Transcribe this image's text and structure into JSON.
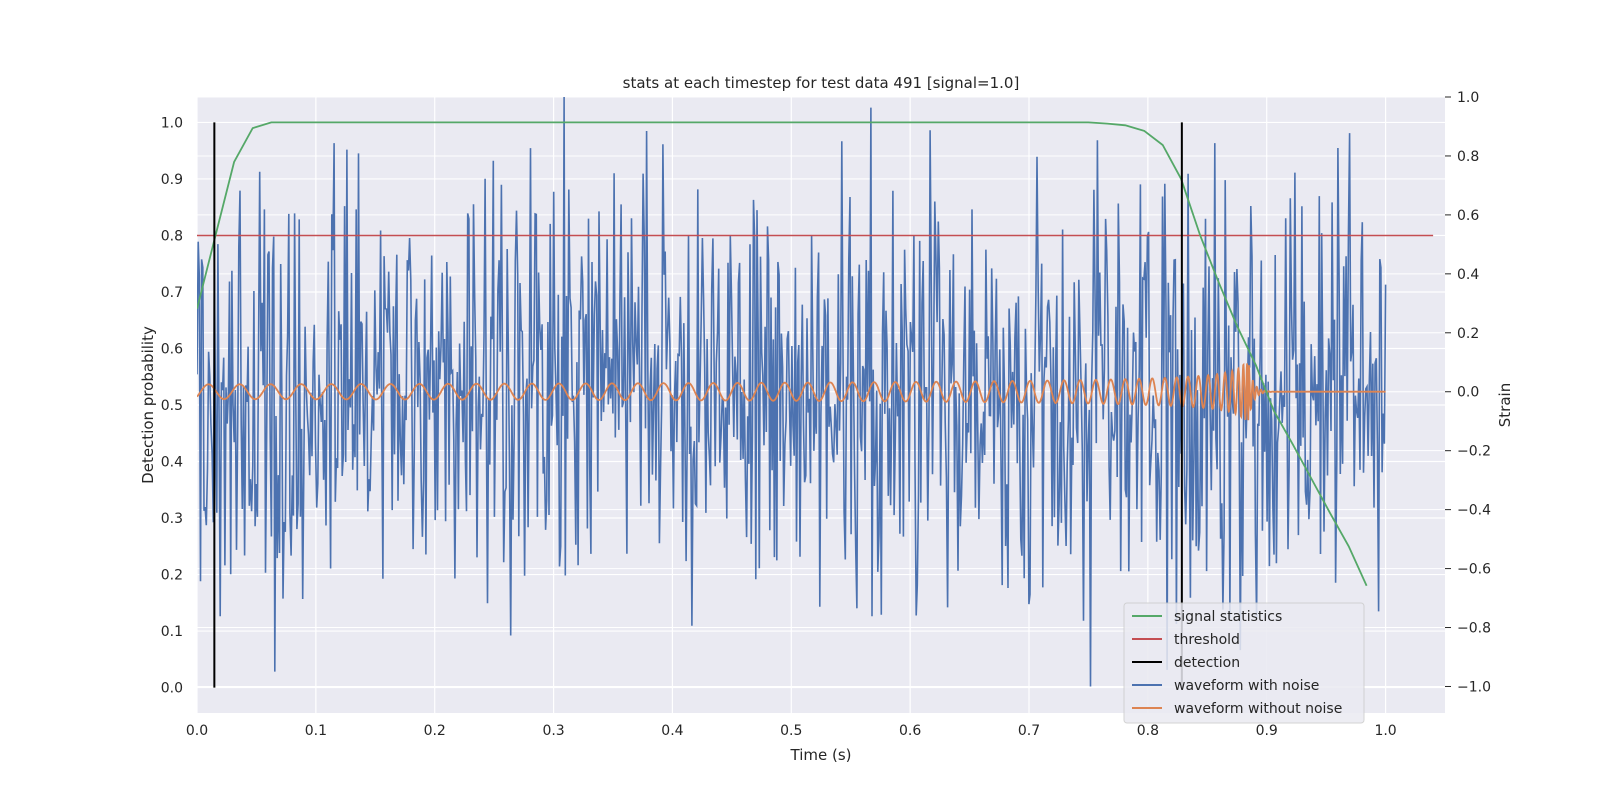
{
  "chart_data": {
    "type": "line",
    "title": "stats at each timestep for test data 491 [signal=1.0]",
    "xlabel": "Time (s)",
    "ylabel": "Detection probability",
    "y2label": "Strain",
    "xlim": [
      0.0,
      1.05
    ],
    "ylim": [
      -0.045,
      1.045
    ],
    "y2lim": [
      -1.09,
      1.0
    ],
    "xticks": [
      "0.0",
      "0.1",
      "0.2",
      "0.3",
      "0.4",
      "0.5",
      "0.6",
      "0.7",
      "0.8",
      "0.9",
      "1.0"
    ],
    "yticks": [
      "0.0",
      "0.1",
      "0.2",
      "0.3",
      "0.4",
      "0.5",
      "0.6",
      "0.7",
      "0.8",
      "0.9",
      "1.0"
    ],
    "y2ticks": [
      "−1.0",
      "−0.8",
      "−0.6",
      "−0.4",
      "−0.2",
      "0.0",
      "0.2",
      "0.4",
      "0.6",
      "0.8",
      "1.0"
    ],
    "grid": true,
    "legend_position": "lower right",
    "series": [
      {
        "name": "signal statistics",
        "axis": "left",
        "color": "#55a868",
        "x": [
          0.0,
          0.0156,
          0.03125,
          0.0469,
          0.0625,
          0.078,
          0.1,
          0.2,
          0.3,
          0.4,
          0.5,
          0.6,
          0.7,
          0.75,
          0.766,
          0.781,
          0.797,
          0.8125,
          0.828,
          0.844,
          0.859,
          0.875,
          0.891,
          0.906,
          0.922,
          0.9375,
          0.953,
          0.969,
          0.984
        ],
        "values": [
          0.67,
          0.8,
          0.93,
          0.99,
          1.0,
          1.0,
          1.0,
          1.0,
          1.0,
          1.0,
          1.0,
          1.0,
          1.0,
          1.0,
          0.998,
          0.995,
          0.985,
          0.96,
          0.9,
          0.8,
          0.72,
          0.64,
          0.57,
          0.49,
          0.43,
          0.37,
          0.31,
          0.25,
          0.18
        ]
      },
      {
        "name": "threshold",
        "axis": "left",
        "color": "#c44e52",
        "x": [
          0.0,
          1.04
        ],
        "values": [
          0.8,
          0.8
        ]
      },
      {
        "name": "detection",
        "axis": "left",
        "color": "#000000",
        "segments": [
          {
            "x": 0.0146,
            "y": [
              0.0,
              1.0
            ]
          },
          {
            "x": 0.8286,
            "y": [
              0.0,
              1.0
            ]
          }
        ]
      },
      {
        "name": "waveform with noise",
        "axis": "right",
        "color": "#4c72b0",
        "x_start": 0.0,
        "x_end": 1.0,
        "num_points": 1024,
        "amplitude_range": [
          -1.0,
          1.0
        ],
        "noise_seed": 491
      },
      {
        "name": "waveform without noise",
        "axis": "right",
        "color": "#dd8452",
        "x_start": 0.0,
        "x_end": 1.0,
        "merger_time": 0.885,
        "amplitude_range": [
          -0.08,
          0.11
        ]
      }
    ]
  },
  "colors": {
    "plot_background": "#eaeaf2",
    "grid": "#ffffff",
    "text": "#262626"
  }
}
